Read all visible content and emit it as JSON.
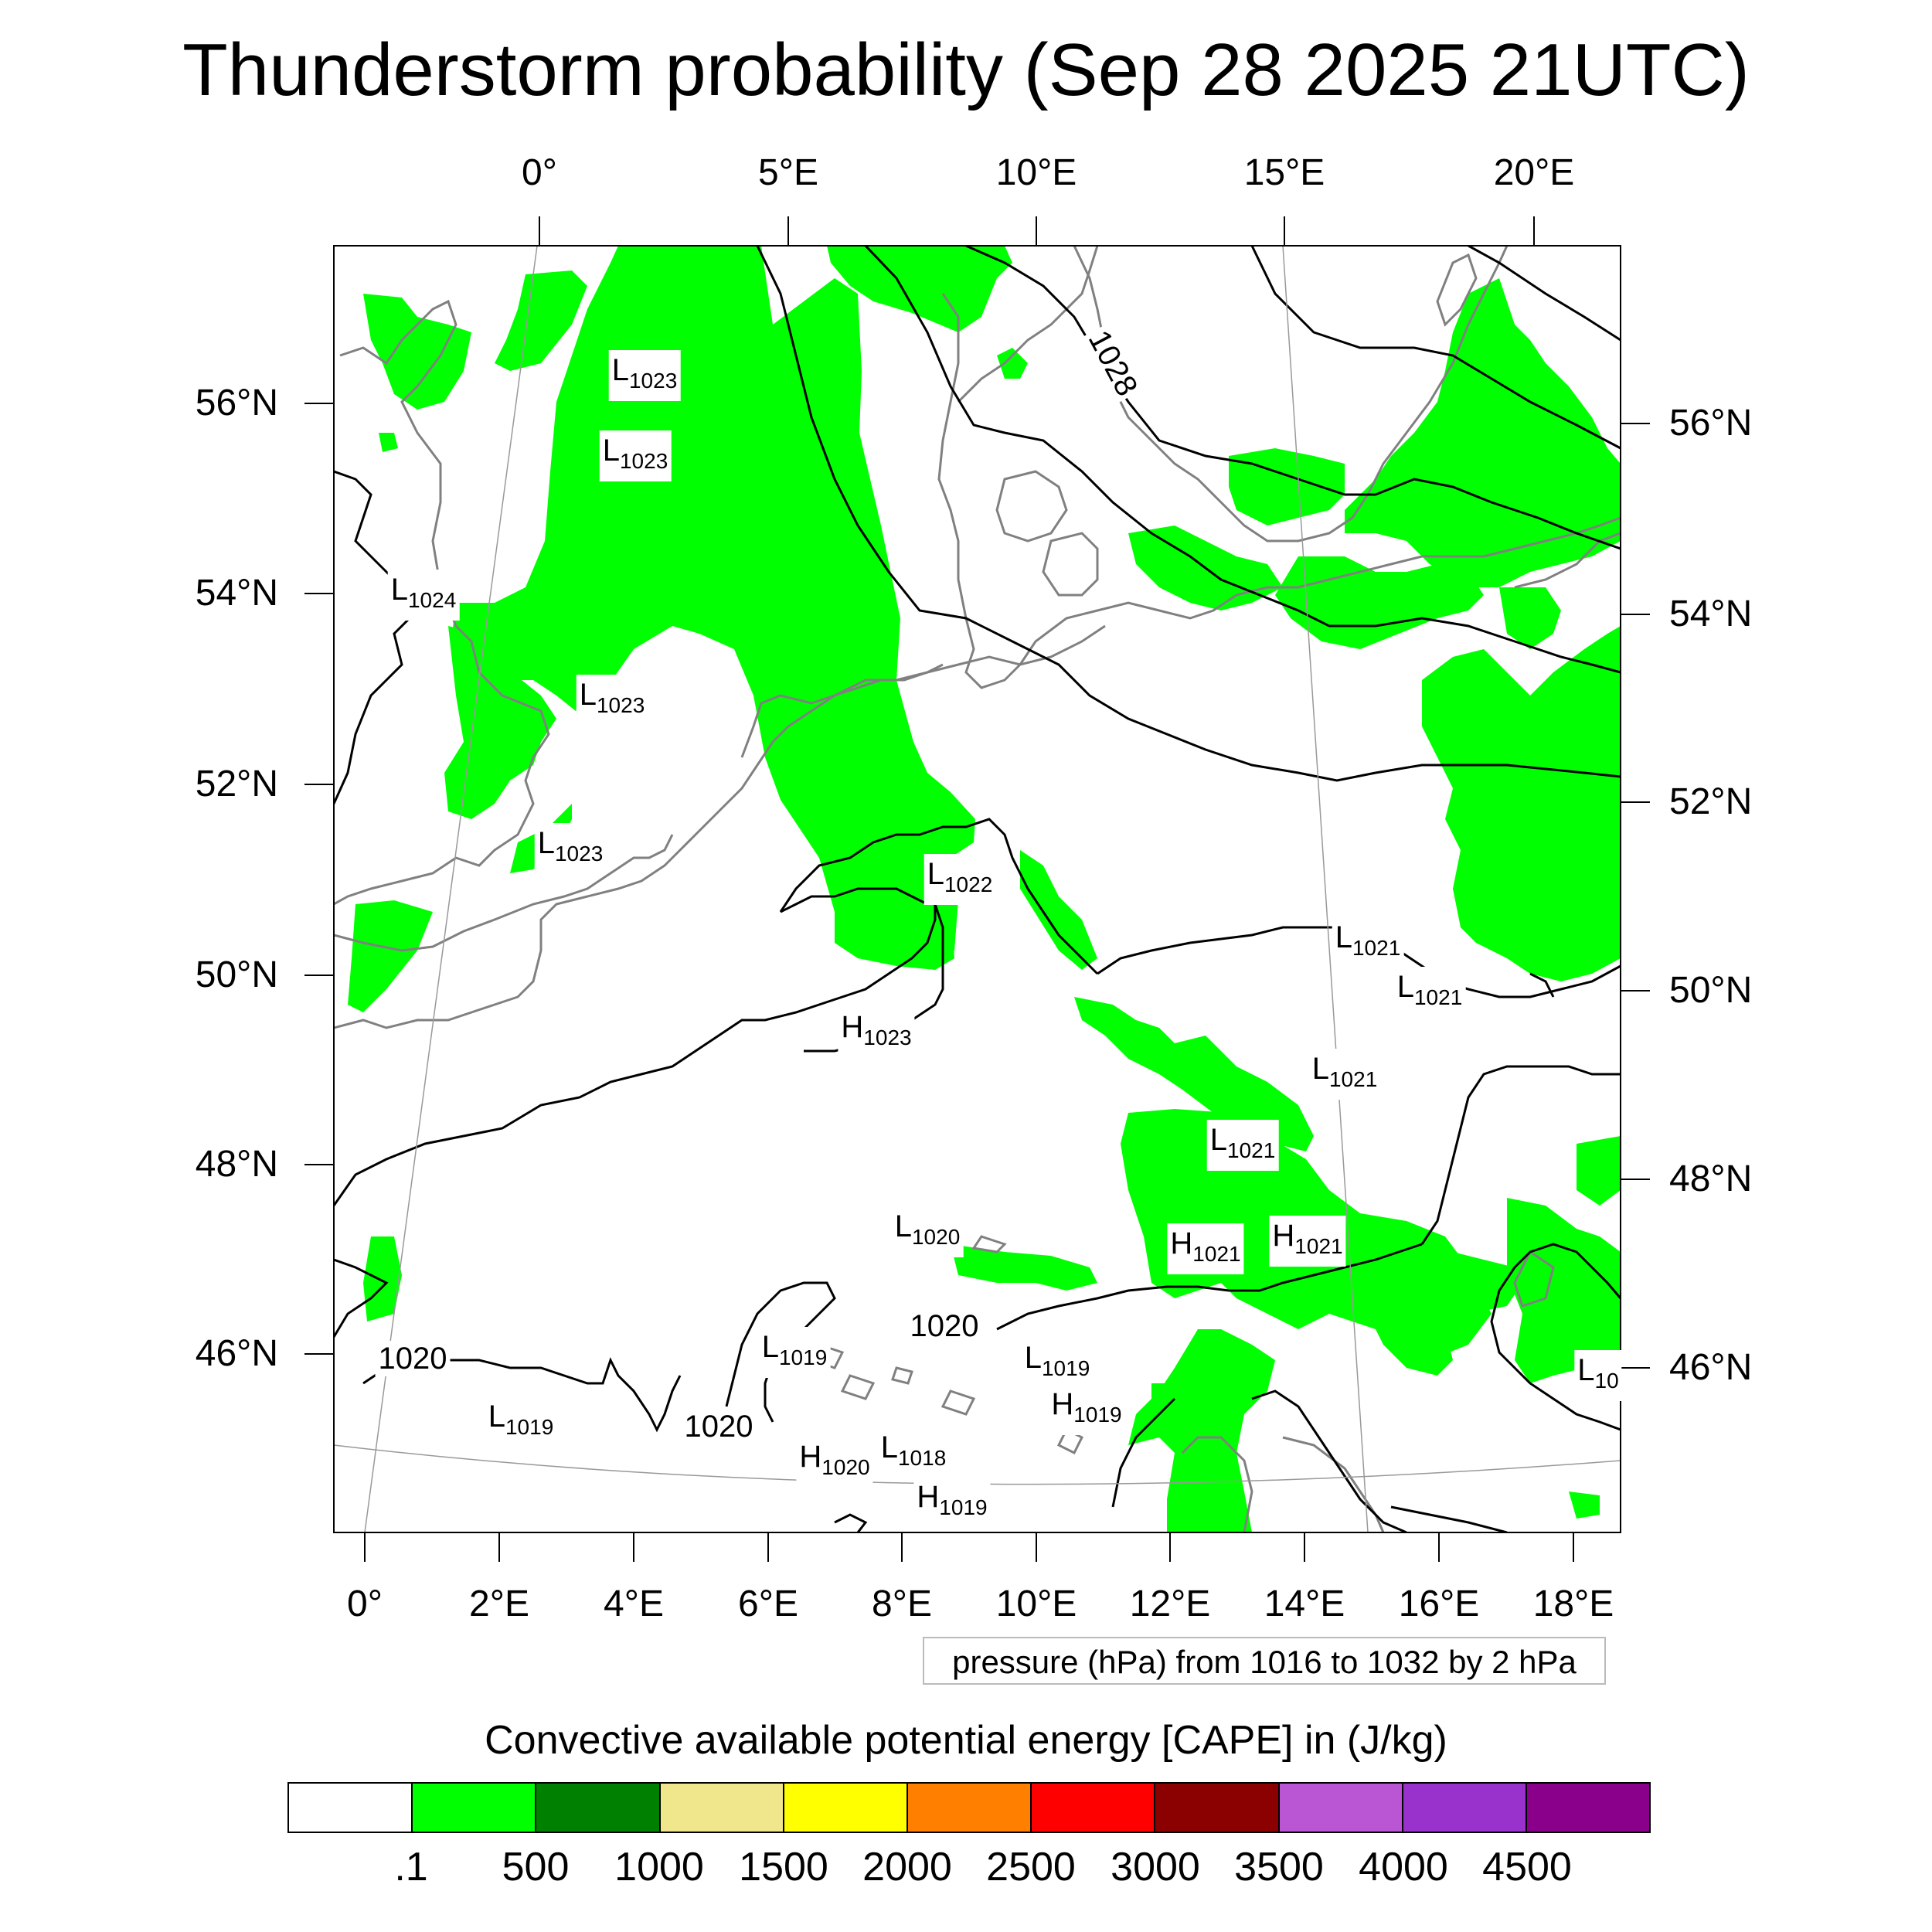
{
  "title": "Thunderstorm probability (Sep 28 2025 21UTC)",
  "top_lon_labels": [
    "0°",
    "5°E",
    "10°E",
    "15°E",
    "20°E"
  ],
  "bottom_lon_labels": [
    "0°",
    "2°E",
    "4°E",
    "6°E",
    "8°E",
    "10°E",
    "12°E",
    "14°E",
    "16°E",
    "18°E"
  ],
  "left_lat_labels": [
    "56°N",
    "54°N",
    "52°N",
    "50°N",
    "48°N",
    "46°N"
  ],
  "right_lat_labels": [
    "56°N",
    "54°N",
    "52°N",
    "50°N",
    "48°N",
    "46°N"
  ],
  "contour_info": "pressure (hPa) from 1016 to 1032 by 2 hPa",
  "colorbar": {
    "title": "Convective available potential energy [CAPE] in (J/kg)",
    "colors": [
      "#ffffff",
      "#00ff00",
      "#008000",
      "#f0e68c",
      "#ffff00",
      "#ff8000",
      "#ff0000",
      "#8b0000",
      "#ba55d3",
      "#9932cc",
      "#8b008b"
    ],
    "labels": [
      ".1",
      "500",
      "1000",
      "1500",
      "2000",
      "2500",
      "3000",
      "3500",
      "4000",
      "4500"
    ]
  },
  "pressure_centers": [
    {
      "type": "L",
      "value": "1023"
    },
    {
      "type": "L",
      "value": "1023"
    },
    {
      "type": "L",
      "value": "1024"
    },
    {
      "type": "L",
      "value": "1023"
    },
    {
      "type": "L",
      "value": "1023"
    },
    {
      "type": "L",
      "value": "1022"
    },
    {
      "type": "H",
      "value": "1023"
    },
    {
      "type": "L",
      "value": "1021"
    },
    {
      "type": "L",
      "value": "1021"
    },
    {
      "type": "L",
      "value": "1021"
    },
    {
      "type": "L",
      "value": "1021"
    },
    {
      "type": "L",
      "value": "1020"
    },
    {
      "type": "H",
      "value": "1021"
    },
    {
      "type": "H",
      "value": "1021"
    },
    {
      "type": "L",
      "value": "1019"
    },
    {
      "type": "L",
      "value": "1019"
    },
    {
      "type": "L",
      "value": "1019"
    },
    {
      "type": "H",
      "value": "1019"
    },
    {
      "type": "H",
      "value": "1020"
    },
    {
      "type": "L",
      "value": "1018"
    },
    {
      "type": "H",
      "value": "1019"
    },
    {
      "type": "L",
      "value": "10"
    }
  ],
  "contour_values": [
    "1028",
    "1020",
    "1020",
    "1020"
  ]
}
